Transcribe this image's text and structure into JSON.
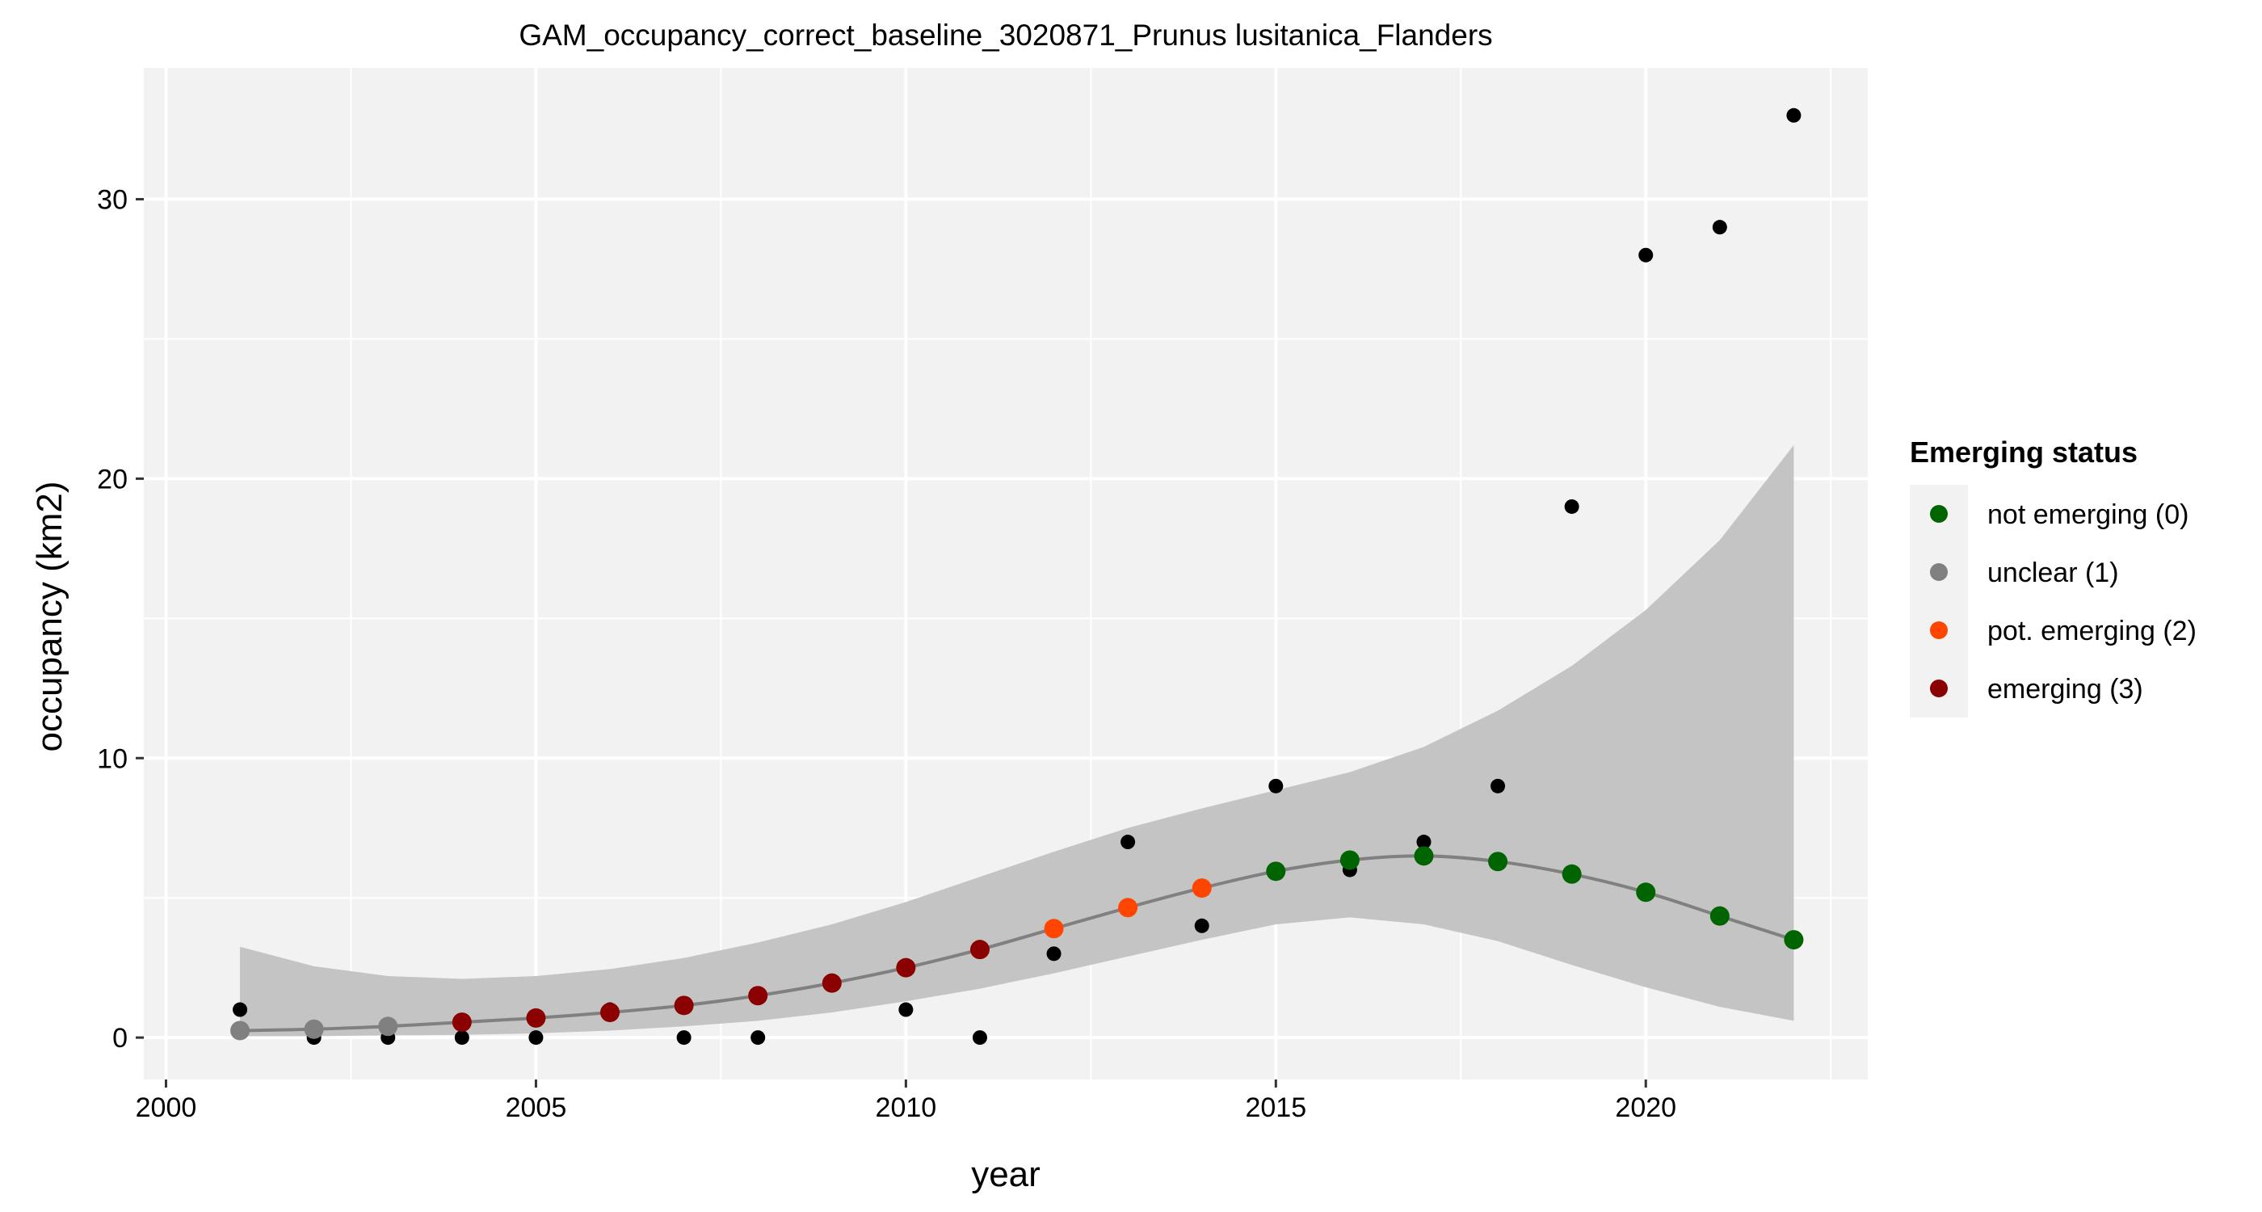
{
  "chart_data": {
    "type": "scatter",
    "title": "GAM_occupancy_correct_baseline_3020871_Prunus lusitanica_Flanders",
    "xlabel": "year",
    "ylabel": "occupancy (km2)",
    "xlim": [
      1999.7,
      2023.0
    ],
    "ylim": [
      -1.5,
      34.7
    ],
    "x_ticks": [
      2000,
      2005,
      2010,
      2015,
      2020
    ],
    "y_ticks": [
      0,
      10,
      20,
      30
    ],
    "grid": true,
    "background": "#f2f2f2",
    "legend": {
      "title": "Emerging status",
      "position": "right",
      "entries": [
        {
          "label": "not emerging (0)",
          "color": "#006400"
        },
        {
          "label": "unclear (1)",
          "color": "#808080"
        },
        {
          "label": "pot. emerging (2)",
          "color": "#ff4500"
        },
        {
          "label": "emerging (3)",
          "color": "#8b0000"
        }
      ]
    },
    "observed": {
      "color": "#000000",
      "x": [
        2001,
        2002,
        2003,
        2004,
        2005,
        2006,
        2007,
        2008,
        2009,
        2010,
        2011,
        2012,
        2013,
        2014,
        2015,
        2016,
        2017,
        2018,
        2019,
        2020,
        2021,
        2022
      ],
      "y": [
        1,
        0,
        0,
        0,
        0,
        1,
        0,
        0,
        2,
        1,
        0,
        3,
        7,
        4,
        9,
        6,
        7,
        9,
        19,
        28,
        29,
        33
      ]
    },
    "fit": {
      "line_color": "#808080",
      "band_color": "#c4c4c4",
      "x": [
        2001,
        2002,
        2003,
        2004,
        2005,
        2006,
        2007,
        2008,
        2009,
        2010,
        2011,
        2012,
        2013,
        2014,
        2015,
        2016,
        2017,
        2018,
        2019,
        2020,
        2021,
        2022
      ],
      "y": [
        0.25,
        0.3,
        0.4,
        0.55,
        0.7,
        0.9,
        1.15,
        1.5,
        1.95,
        2.5,
        3.15,
        3.9,
        4.65,
        5.35,
        5.95,
        6.35,
        6.5,
        6.3,
        5.85,
        5.2,
        4.35,
        3.5
      ],
      "lower": [
        0.05,
        0.05,
        0.08,
        0.1,
        0.15,
        0.25,
        0.4,
        0.6,
        0.9,
        1.3,
        1.75,
        2.3,
        2.9,
        3.5,
        4.05,
        4.3,
        4.05,
        3.45,
        2.6,
        1.8,
        1.1,
        0.6
      ],
      "upper": [
        3.25,
        2.55,
        2.2,
        2.1,
        2.2,
        2.45,
        2.85,
        3.4,
        4.05,
        4.85,
        5.75,
        6.65,
        7.5,
        8.2,
        8.85,
        9.5,
        10.4,
        11.7,
        13.3,
        15.3,
        17.8,
        21.2
      ],
      "status": [
        1,
        1,
        1,
        3,
        3,
        3,
        3,
        3,
        3,
        3,
        3,
        2,
        2,
        2,
        0,
        0,
        0,
        0,
        0,
        0,
        0,
        0
      ]
    }
  }
}
